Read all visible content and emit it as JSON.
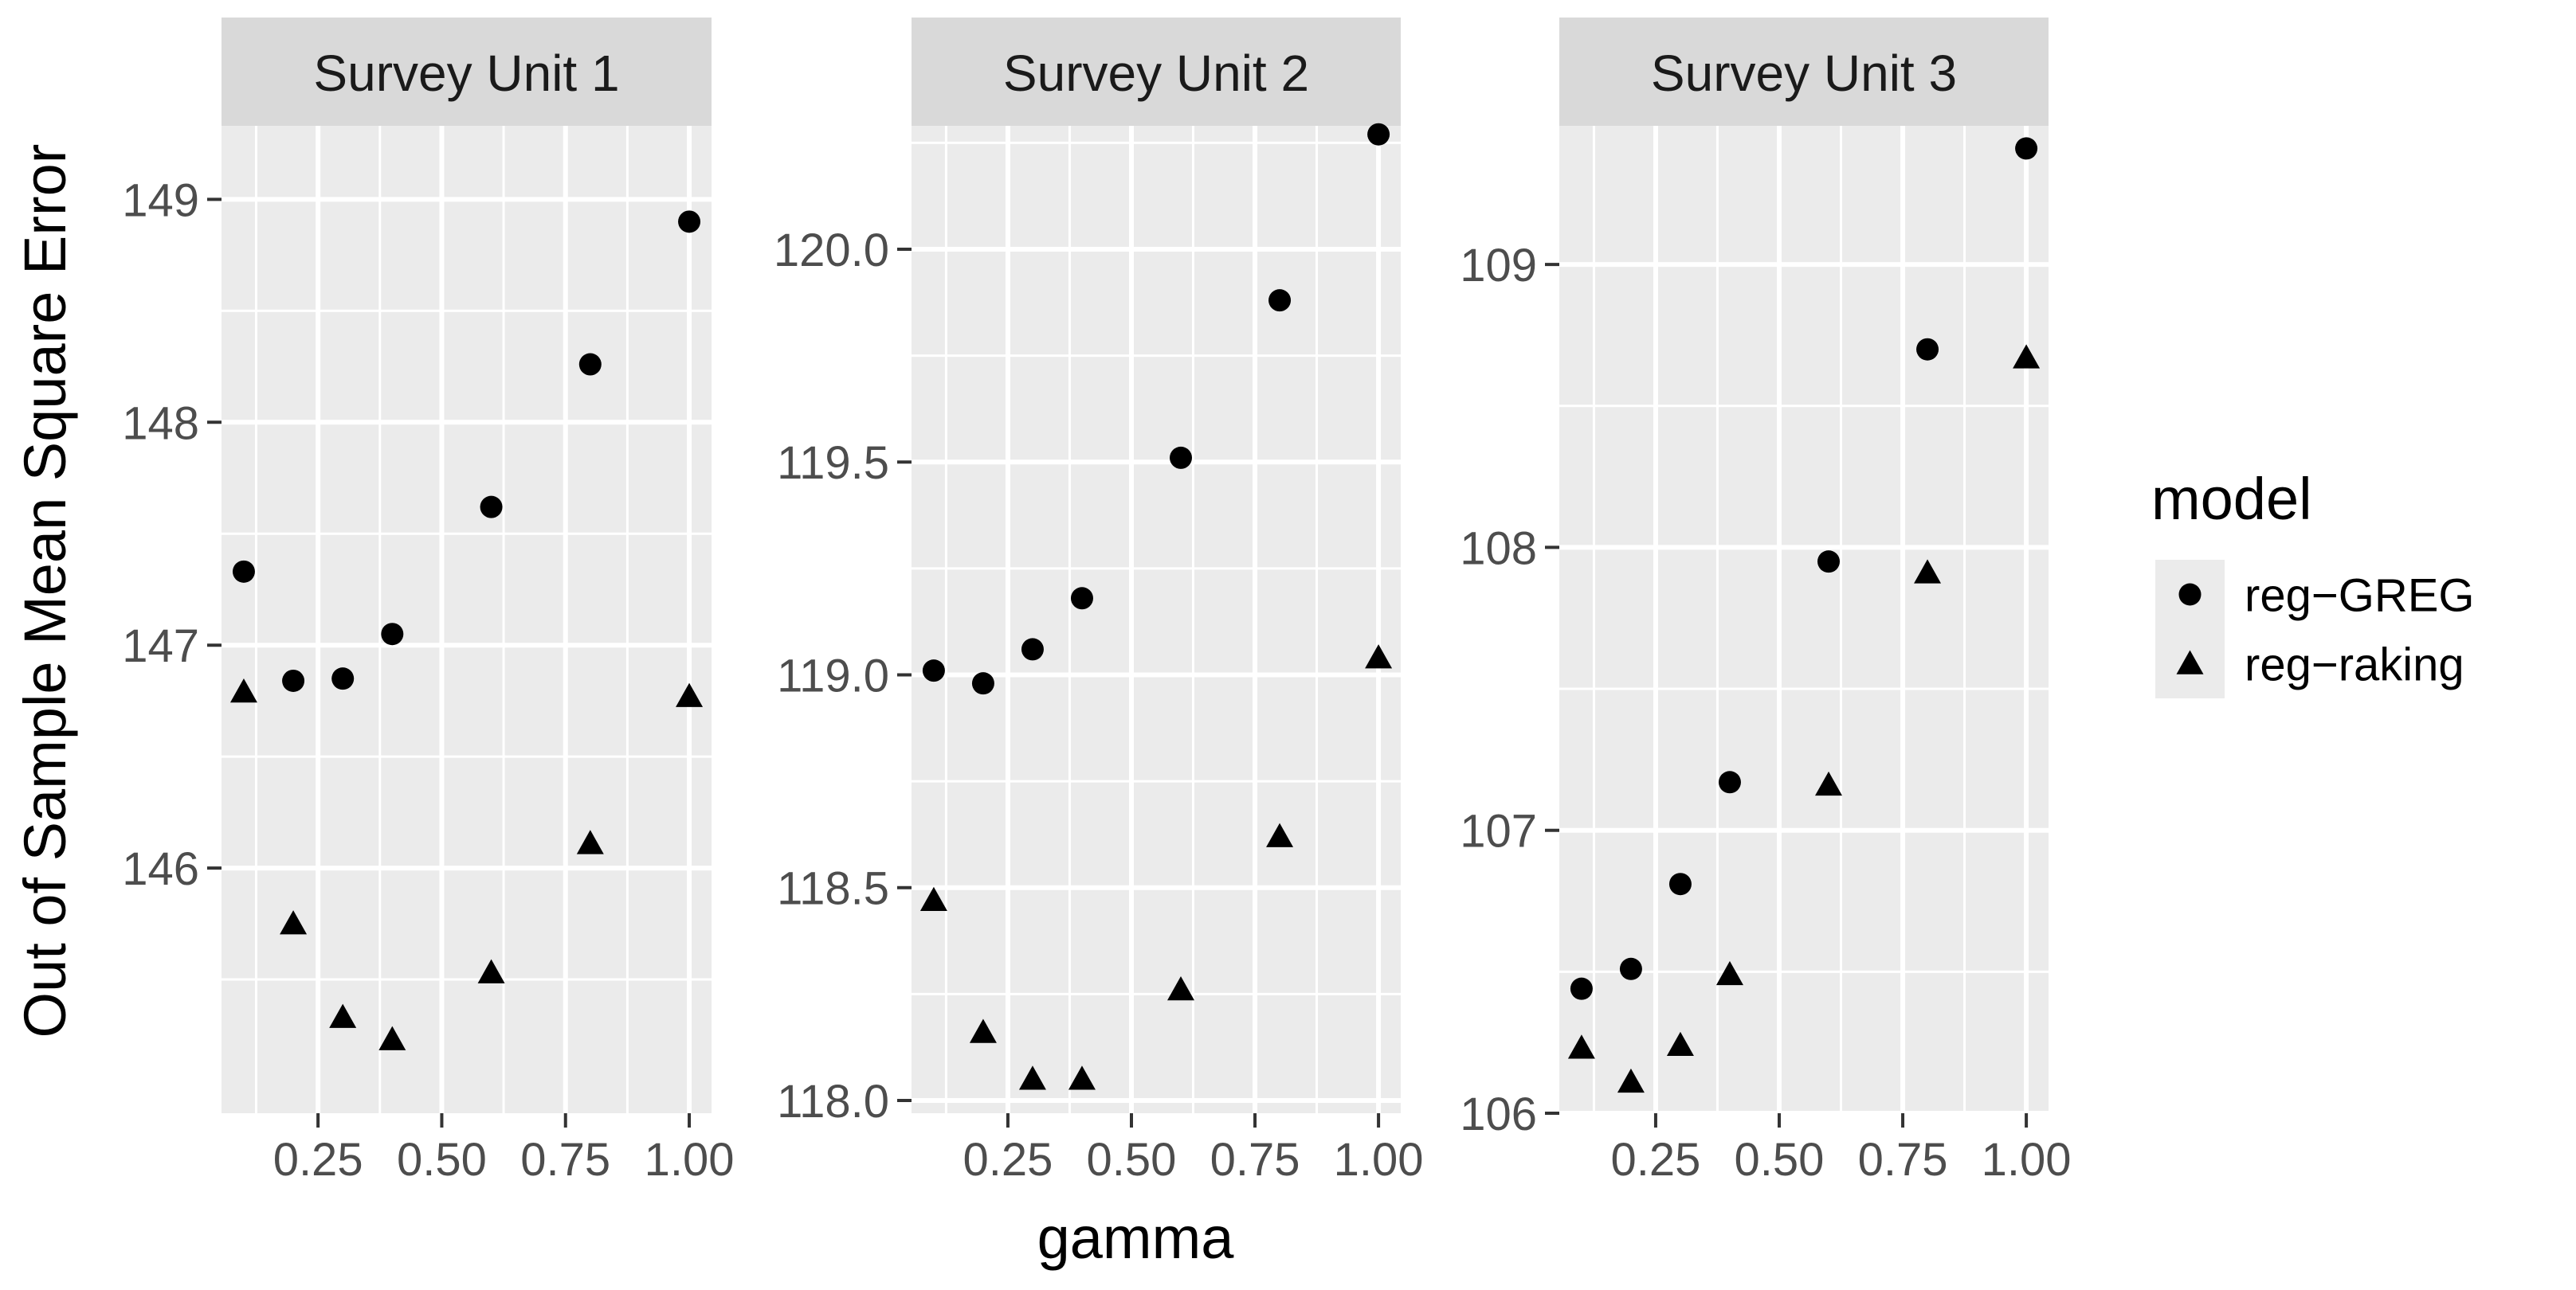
{
  "chart_data": {
    "type": "scatter",
    "layout": "faceted",
    "xlabel": "gamma",
    "ylabel": "Out of Sample Mean Square Error",
    "legend": {
      "title": "model",
      "position": "right",
      "entries": [
        {
          "name": "reg−GREG",
          "shape": "circle"
        },
        {
          "name": "reg−raking",
          "shape": "triangle"
        }
      ]
    },
    "x_ticks": [
      0.25,
      0.5,
      0.75,
      1.0
    ],
    "x_tick_labels": [
      "0.25",
      "0.50",
      "0.75",
      "1.00"
    ],
    "xlim": [
      0.055,
      1.045
    ],
    "facets": [
      {
        "title": "Survey Unit 1",
        "ylim": [
          144.9,
          149.33
        ],
        "y_ticks": [
          146,
          147,
          148,
          149
        ],
        "y_tick_labels": [
          "146",
          "147",
          "148",
          "149"
        ],
        "series": [
          {
            "name": "reg−GREG",
            "shape": "circle",
            "x": [
              0.1,
              0.2,
              0.3,
              0.4,
              0.6,
              0.8,
              1.0
            ],
            "y": [
              147.33,
              146.84,
              146.85,
              147.05,
              147.62,
              148.26,
              148.9
            ]
          },
          {
            "name": "reg−raking",
            "shape": "triangle",
            "x": [
              0.1,
              0.2,
              0.3,
              0.4,
              0.6,
              0.8,
              1.0
            ],
            "y": [
              146.79,
              145.75,
              145.33,
              145.23,
              145.53,
              146.11,
              146.77
            ]
          }
        ]
      },
      {
        "title": "Survey Unit 2",
        "ylim": [
          117.97,
          120.29
        ],
        "y_ticks": [
          118.0,
          118.5,
          119.0,
          119.5,
          120.0
        ],
        "y_tick_labels": [
          "118.0",
          "118.5",
          "119.0",
          "119.5",
          "120.0"
        ],
        "series": [
          {
            "name": "reg−GREG",
            "shape": "circle",
            "x": [
              0.1,
              0.2,
              0.3,
              0.4,
              0.6,
              0.8,
              1.0
            ],
            "y": [
              119.01,
              118.98,
              119.06,
              119.18,
              119.51,
              119.88,
              120.27
            ]
          },
          {
            "name": "reg−raking",
            "shape": "triangle",
            "x": [
              0.1,
              0.2,
              0.3,
              0.4,
              0.6,
              0.8,
              1.0
            ],
            "y": [
              118.47,
              118.16,
              118.05,
              118.05,
              118.26,
              118.62,
              119.04
            ]
          }
        ]
      },
      {
        "title": "Survey Unit 3",
        "ylim": [
          106.0,
          109.49
        ],
        "y_ticks": [
          106,
          107,
          108,
          109
        ],
        "y_tick_labels": [
          "106",
          "107",
          "108",
          "109"
        ],
        "series": [
          {
            "name": "reg−GREG",
            "shape": "circle",
            "x": [
              0.1,
              0.2,
              0.3,
              0.4,
              0.6,
              0.8,
              1.0
            ],
            "y": [
              106.44,
              106.51,
              106.81,
              107.17,
              107.95,
              108.7,
              109.41
            ]
          },
          {
            "name": "reg−raking",
            "shape": "triangle",
            "x": [
              0.1,
              0.2,
              0.3,
              0.4,
              0.6,
              0.8,
              1.0
            ],
            "y": [
              106.23,
              106.11,
              106.24,
              106.49,
              107.16,
              107.91,
              108.67
            ]
          }
        ]
      }
    ]
  }
}
